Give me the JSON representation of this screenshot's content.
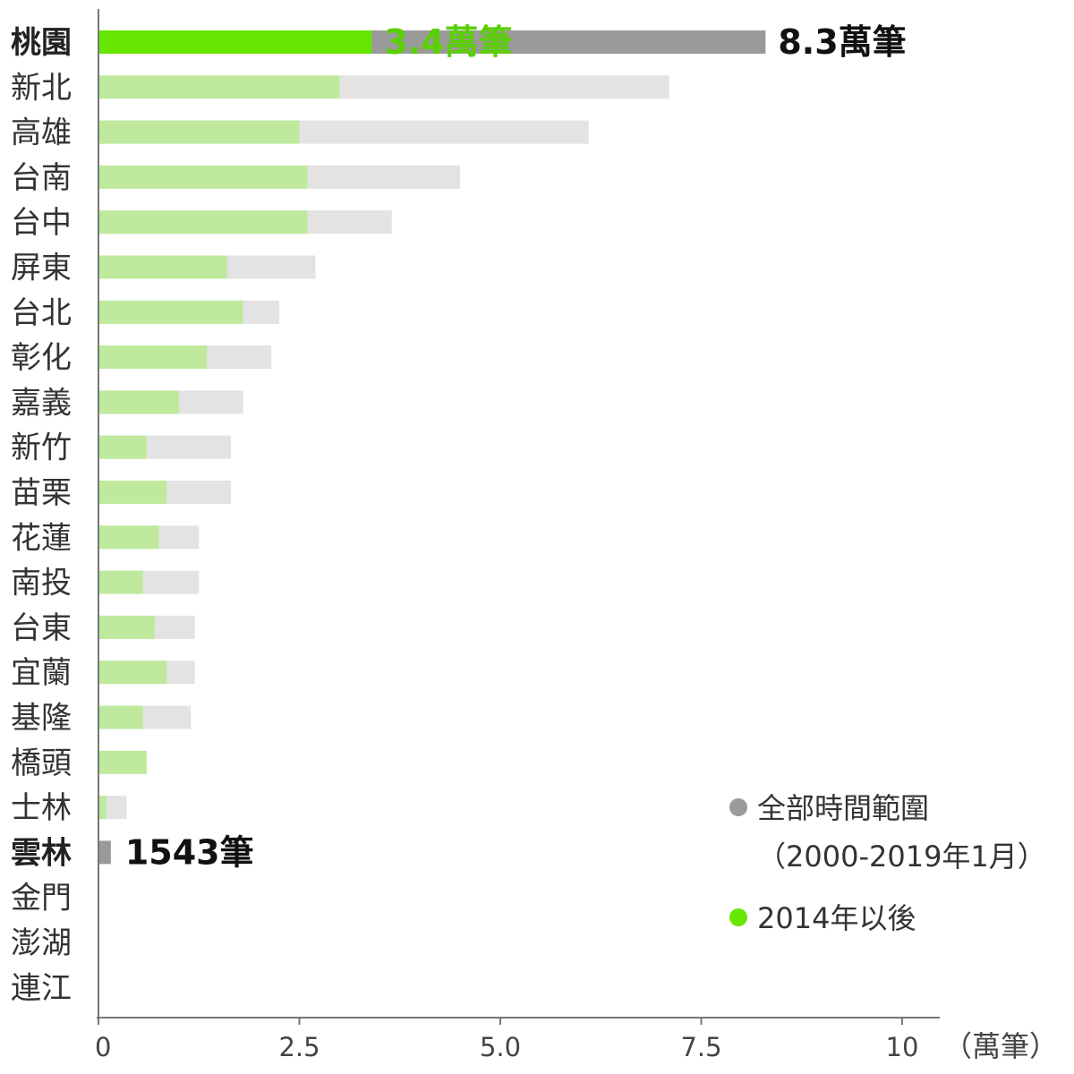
{
  "chart_data": {
    "type": "bar",
    "orientation": "horizontal",
    "categories": [
      "桃園",
      "新北",
      "高雄",
      "台南",
      "台中",
      "屏東",
      "台北",
      "彰化",
      "嘉義",
      "新竹",
      "苗栗",
      "花蓮",
      "南投",
      "台東",
      "宜蘭",
      "基隆",
      "橋頭",
      "士林",
      "雲林",
      "金門",
      "澎湖",
      "連江"
    ],
    "bold_categories": [
      "桃園",
      "雲林"
    ],
    "series": [
      {
        "name": "全部時間範圍（2000-2019年1月）",
        "color": "#e3e3e3",
        "highlight_color": "#9a9a9a",
        "values": [
          8.3,
          7.1,
          6.1,
          4.5,
          3.65,
          2.7,
          2.25,
          2.15,
          1.8,
          1.65,
          1.65,
          1.25,
          1.25,
          1.2,
          1.2,
          1.15,
          0.0,
          0.35,
          0.1543,
          0,
          0,
          0
        ]
      },
      {
        "name": "2014年以後",
        "color": "#bfea9d",
        "highlight_color": "#66e600",
        "values": [
          3.4,
          3.0,
          2.5,
          2.6,
          2.6,
          1.6,
          1.8,
          1.35,
          1.0,
          0.6,
          0.85,
          0.75,
          0.55,
          0.7,
          0.85,
          0.55,
          0.6,
          0.1,
          0,
          0,
          0,
          0
        ]
      }
    ],
    "highlight_categories": [
      "桃園",
      "雲林"
    ],
    "xlim": [
      0,
      10.5
    ],
    "xticks": [
      0,
      2.5,
      5.0,
      7.5,
      10
    ],
    "xtick_labels": [
      "0",
      "2.5",
      "5.0",
      "7.5",
      "10"
    ],
    "xlabel": "（萬筆）",
    "annotations": [
      {
        "category": "桃園",
        "series": "2014年以後",
        "text": "3.4萬筆",
        "color": "#5ad000"
      },
      {
        "category": "桃園",
        "series": "全部時間範圍（2000-2019年1月）",
        "text": "8.3萬筆",
        "color": "#111111"
      },
      {
        "category": "雲林",
        "series": "全部時間範圍（2000-2019年1月）",
        "text": "1543筆",
        "color": "#111111"
      }
    ],
    "legend": {
      "placement": "bottom-right",
      "entries": [
        {
          "lines": [
            "全部時間範圍",
            "（2000-2019年1月）"
          ],
          "color": "#9a9a9a"
        },
        {
          "lines": [
            "2014年以後"
          ],
          "color": "#66e600"
        }
      ]
    },
    "grid": false
  }
}
